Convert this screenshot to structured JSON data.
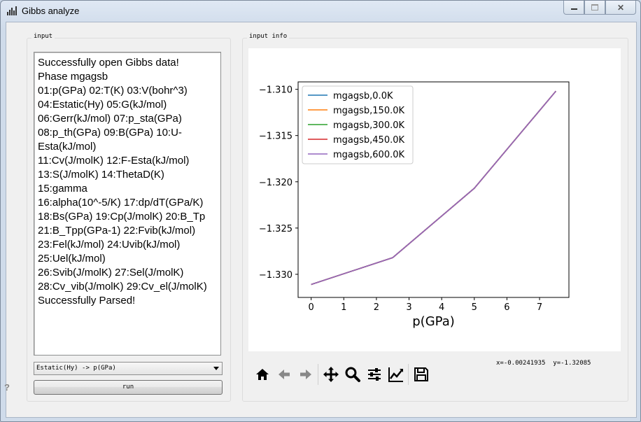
{
  "window": {
    "title": "Gibbs analyze"
  },
  "input_group": {
    "label": "input"
  },
  "info_group": {
    "label": "input info"
  },
  "output_lines": [
    "Successfully open Gibbs data!",
    "Phase mgagsb",
    "01:p(GPa) 02:T(K) 03:V(bohr^3)",
    "04:Estatic(Hy) 05:G(kJ/mol)",
    "06:Gerr(kJ/mol) 07:p_sta(GPa)",
    "08:p_th(GPa) 09:B(GPa) 10:U-Esta(kJ/mol)",
    "11:Cv(J/molK) 12:F-Esta(kJ/mol)",
    "13:S(J/molK) 14:ThetaD(K)",
    "15:gamma",
    "16:alpha(10^-5/K) 17:dp/dT(GPa/K)",
    "18:Bs(GPa) 19:Cp(J/molK) 20:B_Tp",
    "21:B_Tpp(GPa-1) 22:Fvib(kJ/mol)",
    "23:Fel(kJ/mol) 24:Uvib(kJ/mol)",
    "25:Uel(kJ/mol)",
    "26:Svib(J/molK) 27:Sel(J/molK)",
    "28:Cv_vib(J/molK) 29:Cv_el(J/molK)",
    "Successfully Parsed!"
  ],
  "combo": {
    "selected": "Estatic(Hy) -> p(GPa)"
  },
  "run_button": {
    "label": "run"
  },
  "status": {
    "coords": "x=-0.00241935  y=-1.32085"
  },
  "toolbar_icons": [
    "home-icon",
    "back-icon",
    "forward-icon",
    "pan-icon",
    "zoom-icon",
    "subplots-icon",
    "customize-icon",
    "save-icon"
  ],
  "chart_data": {
    "type": "line",
    "xlabel": "p(GPa)",
    "ylabel": "",
    "xlim": [
      -0.4,
      7.9
    ],
    "ylim": [
      -1.3325,
      -1.3092
    ],
    "xticks": [
      0,
      1,
      2,
      3,
      4,
      5,
      6,
      7
    ],
    "yticks": [
      -1.31,
      -1.315,
      -1.32,
      -1.325,
      -1.33
    ],
    "ytick_labels": [
      "−1.310",
      "−1.315",
      "−1.320",
      "−1.325",
      "−1.330"
    ],
    "legend_position": "upper-left",
    "x": [
      0,
      2.5,
      5,
      7.5
    ],
    "series": [
      {
        "name": "mgagsb,0.0K",
        "color": "#1f77b4",
        "values": [
          -1.3311,
          -1.3282,
          -1.3207,
          -1.3102
        ]
      },
      {
        "name": "mgagsb,150.0K",
        "color": "#ff7f0e",
        "values": [
          -1.3311,
          -1.3282,
          -1.3207,
          -1.3102
        ]
      },
      {
        "name": "mgagsb,300.0K",
        "color": "#2ca02c",
        "values": [
          -1.3311,
          -1.3282,
          -1.3207,
          -1.3102
        ]
      },
      {
        "name": "mgagsb,450.0K",
        "color": "#d62728",
        "values": [
          -1.3311,
          -1.3282,
          -1.3207,
          -1.3102
        ]
      },
      {
        "name": "mgagsb,600.0K",
        "color": "#9467bd",
        "values": [
          -1.3311,
          -1.3282,
          -1.3207,
          -1.3102
        ]
      }
    ]
  }
}
